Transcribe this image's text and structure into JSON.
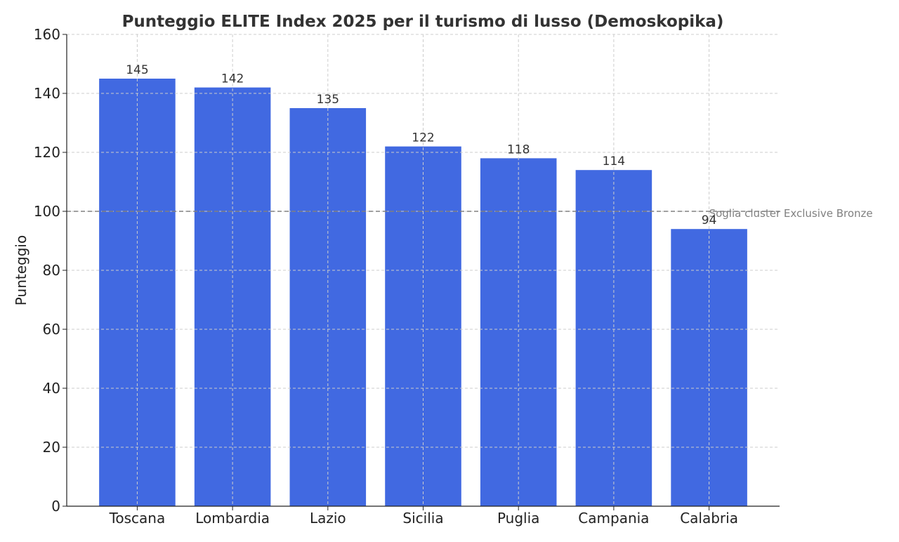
{
  "chart_data": {
    "type": "bar",
    "title": "Punteggio ELITE Index 2025 per il turismo di lusso (Demoskopika)",
    "xlabel": "",
    "ylabel": "Punteggio",
    "categories": [
      "Toscana",
      "Lombardia",
      "Lazio",
      "Sicilia",
      "Puglia",
      "Campania",
      "Calabria"
    ],
    "values": [
      145,
      142,
      135,
      122,
      118,
      114,
      94
    ],
    "ylim": [
      0,
      160
    ],
    "yticks": [
      0,
      20,
      40,
      60,
      80,
      100,
      120,
      140,
      160
    ],
    "grid": true,
    "bar_color": "#4169E1",
    "reference_line": {
      "value": 100,
      "label": "Soglia cluster Exclusive Bronze",
      "color": "#808080",
      "style": "dashed"
    }
  }
}
